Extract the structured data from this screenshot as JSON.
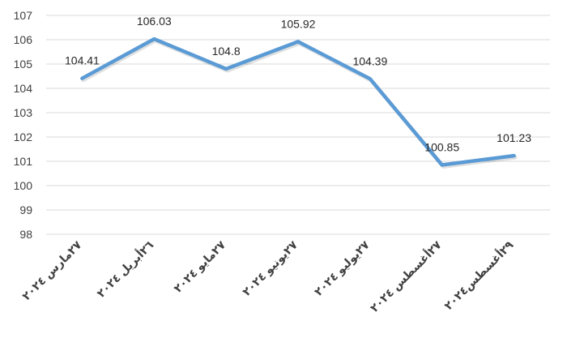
{
  "chart_data": {
    "type": "line",
    "categories": [
      "٢٧مارس ٢٠٢٤",
      "٢٦أبريل ٢٠٢٤",
      "٢٧مايو ٢٠٢٤",
      "٢٧يونيو ٢٠٢٤",
      "٢٧يوليو ٢٠٢٤",
      "٢٧أغسطس ٢٠٢٤",
      "٢٩أغسطس٢٠٢٤"
    ],
    "series": [
      {
        "values": [
          104.41,
          106.03,
          104.8,
          105.92,
          104.39,
          100.85,
          101.23
        ],
        "data_labels": [
          "104.41",
          "106.03",
          "104.8",
          "105.92",
          "104.39",
          "100.85",
          "101.23"
        ]
      }
    ],
    "ylim": [
      98,
      107
    ],
    "y_ticks": [
      98,
      99,
      100,
      101,
      102,
      103,
      104,
      105,
      106,
      107
    ],
    "grid": true,
    "legend": "none",
    "line_color": "#5b9bd5",
    "grid_color": "#d9d9d9"
  }
}
